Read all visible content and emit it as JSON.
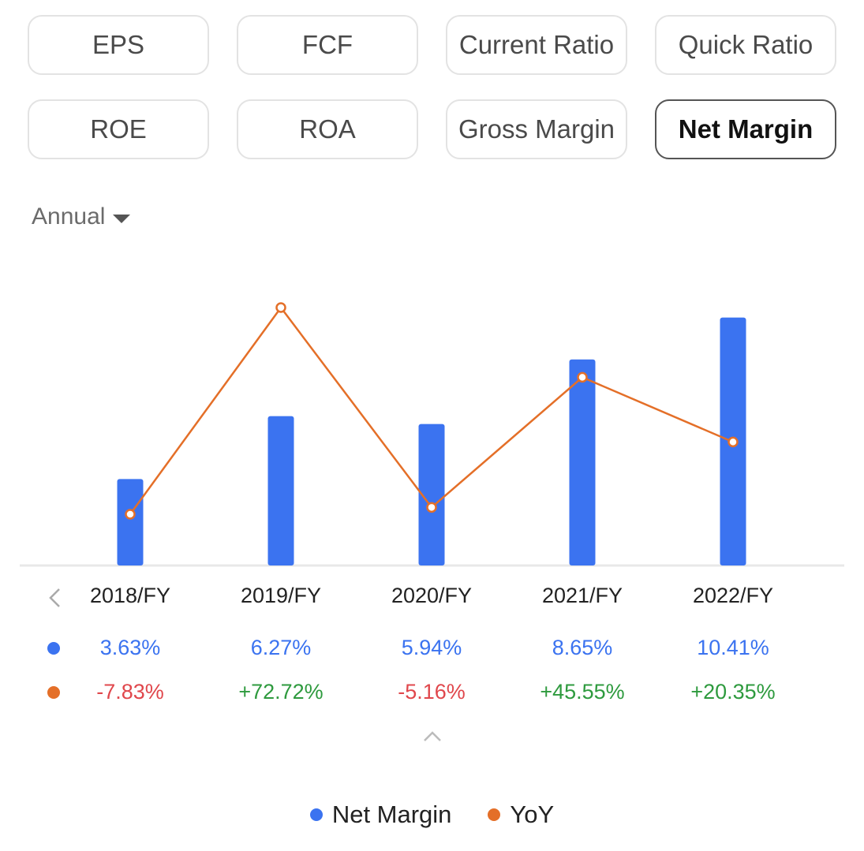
{
  "tabs": [
    {
      "label": "EPS",
      "active": false
    },
    {
      "label": "FCF",
      "active": false
    },
    {
      "label": "Current Ratio",
      "active": false
    },
    {
      "label": "Quick Ratio",
      "active": false
    },
    {
      "label": "ROE",
      "active": false
    },
    {
      "label": "ROA",
      "active": false
    },
    {
      "label": "Gross Margin",
      "active": false
    },
    {
      "label": "Net Margin",
      "active": true
    }
  ],
  "period": {
    "label": "Annual"
  },
  "colors": {
    "bar": "#3b73f0",
    "line": "#e46f28",
    "positive": "#2e9a3e",
    "negative": "#e0474c"
  },
  "chart_data": {
    "type": "bar",
    "categories": [
      "2018/FY",
      "2019/FY",
      "2020/FY",
      "2021/FY",
      "2022/FY"
    ],
    "series": [
      {
        "name": "Net Margin",
        "type": "bar",
        "values": [
          3.63,
          6.27,
          5.94,
          8.65,
          10.41
        ],
        "labels": [
          "3.63%",
          "6.27%",
          "5.94%",
          "8.65%",
          "10.41%"
        ]
      },
      {
        "name": "YoY",
        "type": "line",
        "values": [
          -7.83,
          72.72,
          -5.16,
          45.55,
          20.35
        ],
        "labels": [
          "-7.83%",
          "+72.72%",
          "-5.16%",
          "+45.55%",
          "+20.35%"
        ]
      }
    ],
    "grid": false
  },
  "legend": [
    {
      "label": "Net Margin",
      "color": "#3b73f0"
    },
    {
      "label": "YoY",
      "color": "#e46f28"
    }
  ],
  "icons": {
    "prev": "chevron-left-icon",
    "collapse": "chevron-up-icon",
    "dropdown": "caret-down-icon"
  }
}
